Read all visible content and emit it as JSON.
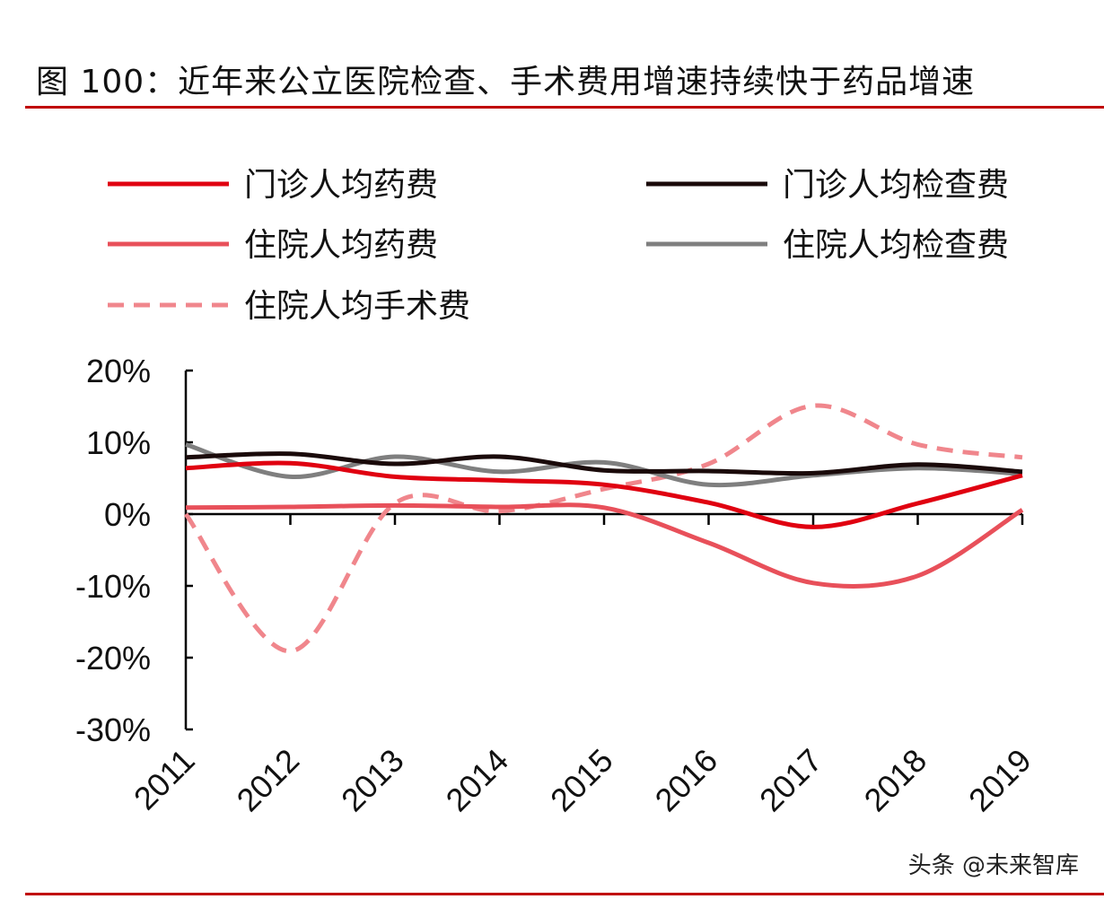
{
  "title": "图 100：近年来公立医院检查、手术费用增速持续快于药品增速",
  "watermark": "头条 @未来智库",
  "chart_data": {
    "type": "line",
    "title": "",
    "xlabel": "",
    "ylabel": "",
    "x": [
      "2011",
      "2012",
      "2013",
      "2014",
      "2015",
      "2016",
      "2017",
      "2018",
      "2019"
    ],
    "ylim": [
      -30,
      20
    ],
    "yticks": [
      20,
      10,
      0,
      -10,
      -20,
      -30
    ],
    "ytick_labels": [
      "20%",
      "10%",
      "0%",
      "-10%",
      "-20%",
      "-30%"
    ],
    "grid": false,
    "legend_position": "top",
    "smooth": true,
    "series": [
      {
        "name": "门诊人均药费",
        "color": "#e00010",
        "dash": false,
        "values": [
          6.4,
          7.1,
          5.2,
          4.7,
          4.1,
          1.6,
          -1.8,
          1.5,
          5.4
        ]
      },
      {
        "name": "门诊人均检查费",
        "color": "#1a0a0a",
        "dash": false,
        "values": [
          7.9,
          8.4,
          7.0,
          8.0,
          6.1,
          6.0,
          5.7,
          6.9,
          5.9
        ]
      },
      {
        "name": "住院人均药费",
        "color": "#e8505a",
        "dash": false,
        "values": [
          0.9,
          1.0,
          1.2,
          1.0,
          0.9,
          -4.0,
          -9.6,
          -8.6,
          0.6
        ]
      },
      {
        "name": "住院人均检查费",
        "color": "#7f7f7f",
        "dash": false,
        "values": [
          9.7,
          5.2,
          8.0,
          5.9,
          7.2,
          4.1,
          5.4,
          6.4,
          5.6
        ]
      },
      {
        "name": "住院人均手术费",
        "color": "#f0868c",
        "dash": true,
        "values": [
          0.0,
          -19.1,
          1.5,
          0.4,
          3.5,
          7.0,
          15.1,
          9.7,
          7.9
        ]
      }
    ]
  }
}
